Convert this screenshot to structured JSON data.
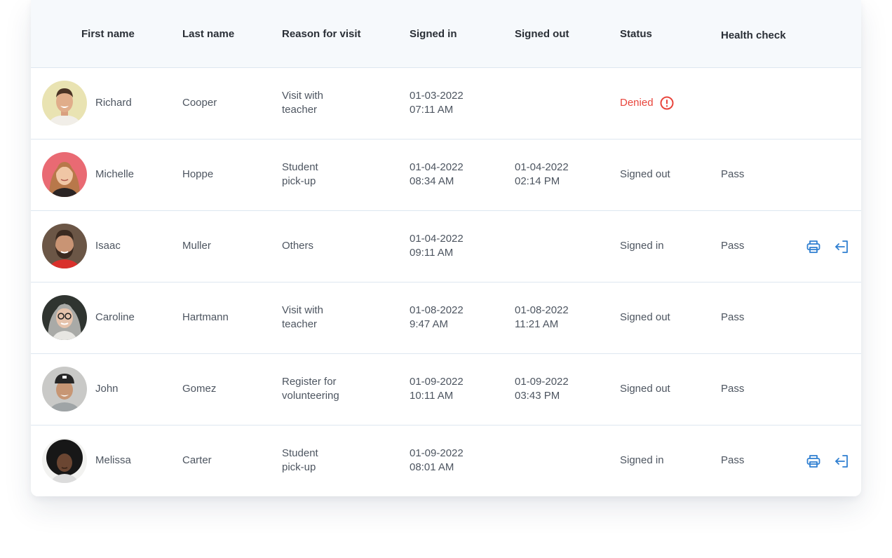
{
  "columns": {
    "first_name": "First name",
    "last_name": "Last name",
    "reason": "Reason for visit",
    "signed_in": "Signed in",
    "signed_out": "Signed out",
    "status": "Status",
    "health_check": "Health check"
  },
  "colors": {
    "accent": "#2f7fd1",
    "denied": "#e8453c"
  },
  "rows": [
    {
      "first_name": "Richard",
      "last_name": "Cooper",
      "reason_1": "Visit with",
      "reason_2": "teacher",
      "in_date": "01-03-2022",
      "in_time": "07:11 AM",
      "out_date": "",
      "out_time": "",
      "status": "Denied",
      "status_icon": "alert-circle-icon",
      "health": "",
      "actions": []
    },
    {
      "first_name": "Michelle",
      "last_name": "Hoppe",
      "reason_1": "Student",
      "reason_2": "pick-up",
      "in_date": "01-04-2022",
      "in_time": "08:34 AM",
      "out_date": "01-04-2022",
      "out_time": "02:14 PM",
      "status": "Signed out",
      "health": "Pass",
      "actions": []
    },
    {
      "first_name": "Isaac",
      "last_name": "Muller",
      "reason_1": "Others",
      "reason_2": "",
      "in_date": "01-04-2022",
      "in_time": "09:11 AM",
      "out_date": "",
      "out_time": "",
      "status": "Signed in",
      "health": "Pass",
      "actions": [
        "printer-icon",
        "sign-out-icon"
      ]
    },
    {
      "first_name": "Caroline",
      "last_name": "Hartmann",
      "reason_1": "Visit with",
      "reason_2": "teacher",
      "in_date": "01-08-2022",
      "in_time": "9:47 AM",
      "out_date": "01-08-2022",
      "out_time": "11:21 AM",
      "status": "Signed out",
      "health": "Pass",
      "actions": []
    },
    {
      "first_name": "John",
      "last_name": "Gomez",
      "reason_1": "Register for",
      "reason_2": "volunteering",
      "in_date": "01-09-2022",
      "in_time": "10:11 AM",
      "out_date": "01-09-2022",
      "out_time": "03:43 PM",
      "status": "Signed out",
      "health": "Pass",
      "actions": []
    },
    {
      "first_name": "Melissa",
      "last_name": "Carter",
      "reason_1": "Student",
      "reason_2": "pick-up",
      "in_date": "01-09-2022",
      "in_time": "08:01 AM",
      "out_date": "",
      "out_time": "",
      "status": "Signed in",
      "health": "Pass",
      "actions": [
        "printer-icon",
        "sign-out-icon"
      ]
    }
  ]
}
